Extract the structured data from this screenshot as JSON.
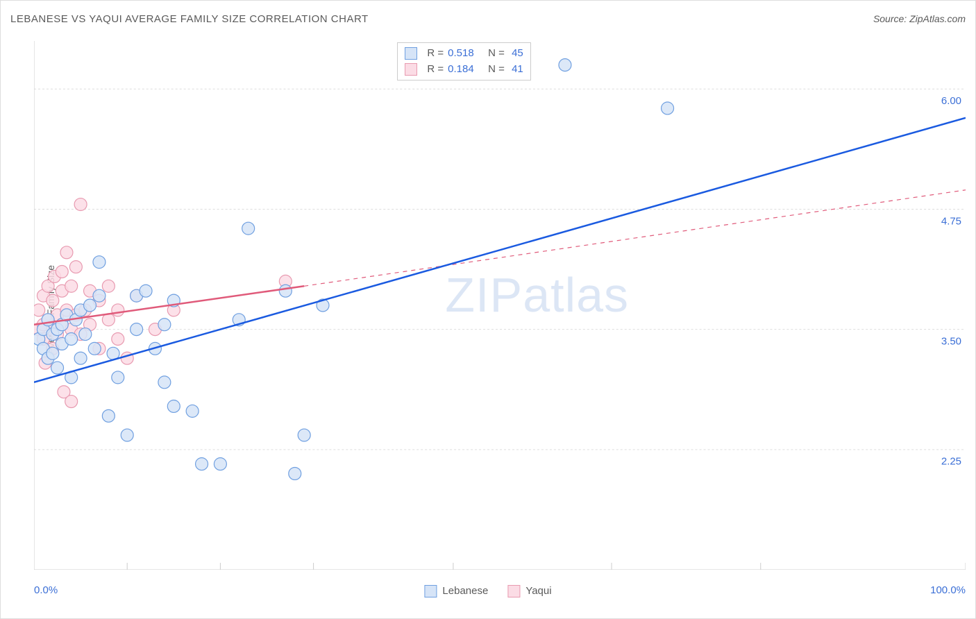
{
  "title": "LEBANESE VS YAQUI AVERAGE FAMILY SIZE CORRELATION CHART",
  "source": "Source: ZipAtlas.com",
  "y_axis_label": "Average Family Size",
  "watermark": {
    "zip": "ZIP",
    "atlas": "atlas"
  },
  "chart": {
    "type": "scatter",
    "xlim": [
      0,
      100
    ],
    "ylim": [
      1.0,
      6.5
    ],
    "x_min_label": "0.0%",
    "x_max_label": "100.0%",
    "y_ticks": [
      2.25,
      3.5,
      4.75,
      6.0
    ],
    "y_tick_labels": [
      "2.25",
      "3.50",
      "4.75",
      "6.00"
    ],
    "x_ticks": [
      0,
      10,
      20,
      30,
      45,
      62,
      78,
      100
    ],
    "grid_color": "#dddddd",
    "grid_dash": "3,3",
    "axis_color": "#cccccc",
    "background_color": "#ffffff",
    "marker_radius": 9,
    "marker_stroke_width": 1.2,
    "series": [
      {
        "name": "Lebanese",
        "fill": "#d6e4f7",
        "stroke": "#6f9fe0",
        "line_color": "#1a5ae0",
        "line_width": 2.5,
        "line_dash_ext": "6,6",
        "R": "0.518",
        "N": "45",
        "trend": {
          "x1": 0,
          "y1": 2.95,
          "x2": 100,
          "y2": 5.7
        },
        "points": [
          [
            0.5,
            3.4
          ],
          [
            1,
            3.5
          ],
          [
            1,
            3.3
          ],
          [
            1.5,
            3.6
          ],
          [
            1.5,
            3.2
          ],
          [
            2,
            3.45
          ],
          [
            2,
            3.25
          ],
          [
            2.5,
            3.5
          ],
          [
            2.5,
            3.1
          ],
          [
            3,
            3.35
          ],
          [
            3,
            3.55
          ],
          [
            3.5,
            3.65
          ],
          [
            4,
            3.4
          ],
          [
            4,
            3.0
          ],
          [
            4.5,
            3.6
          ],
          [
            5,
            3.2
          ],
          [
            5,
            3.7
          ],
          [
            5.5,
            3.45
          ],
          [
            6,
            3.75
          ],
          [
            6.5,
            3.3
          ],
          [
            7,
            3.85
          ],
          [
            7,
            4.2
          ],
          [
            8,
            2.6
          ],
          [
            8.5,
            3.25
          ],
          [
            9,
            3.0
          ],
          [
            10,
            2.4
          ],
          [
            11,
            3.5
          ],
          [
            11,
            3.85
          ],
          [
            12,
            3.9
          ],
          [
            13,
            3.3
          ],
          [
            14,
            2.95
          ],
          [
            14,
            3.55
          ],
          [
            15,
            2.7
          ],
          [
            15,
            3.8
          ],
          [
            17,
            2.65
          ],
          [
            18,
            2.1
          ],
          [
            20,
            2.1
          ],
          [
            22,
            3.6
          ],
          [
            23,
            4.55
          ],
          [
            27,
            3.9
          ],
          [
            28,
            2.0
          ],
          [
            29,
            2.4
          ],
          [
            31,
            3.75
          ],
          [
            57,
            6.25
          ],
          [
            68,
            5.8
          ]
        ]
      },
      {
        "name": "Yaqui",
        "fill": "#fbdce5",
        "stroke": "#e89ab0",
        "line_color": "#e05a7a",
        "line_width": 2.5,
        "line_dash_ext": "6,6",
        "R": "0.184",
        "N": "41",
        "trend_solid": {
          "x1": 0,
          "y1": 3.55,
          "x2": 29,
          "y2": 3.95
        },
        "trend_dash": {
          "x1": 29,
          "y1": 3.95,
          "x2": 100,
          "y2": 4.95
        },
        "points": [
          [
            0.5,
            3.5
          ],
          [
            0.5,
            3.7
          ],
          [
            1,
            3.55
          ],
          [
            1,
            3.4
          ],
          [
            1,
            3.85
          ],
          [
            1.2,
            3.15
          ],
          [
            1.5,
            3.6
          ],
          [
            1.5,
            3.95
          ],
          [
            2,
            3.5
          ],
          [
            2,
            3.8
          ],
          [
            2,
            3.3
          ],
          [
            2.2,
            4.05
          ],
          [
            2.5,
            3.65
          ],
          [
            2.5,
            3.45
          ],
          [
            3,
            3.9
          ],
          [
            3,
            3.55
          ],
          [
            3,
            4.1
          ],
          [
            3.2,
            2.85
          ],
          [
            3.5,
            3.7
          ],
          [
            3.5,
            4.3
          ],
          [
            4,
            3.5
          ],
          [
            4,
            3.95
          ],
          [
            4,
            2.75
          ],
          [
            4.5,
            3.65
          ],
          [
            4.5,
            4.15
          ],
          [
            5,
            3.45
          ],
          [
            5,
            4.8
          ],
          [
            5.5,
            3.7
          ],
          [
            6,
            3.55
          ],
          [
            6,
            3.9
          ],
          [
            7,
            3.3
          ],
          [
            7,
            3.8
          ],
          [
            8,
            3.95
          ],
          [
            8,
            3.6
          ],
          [
            9,
            3.4
          ],
          [
            9,
            3.7
          ],
          [
            10,
            3.2
          ],
          [
            11,
            3.85
          ],
          [
            13,
            3.5
          ],
          [
            15,
            3.7
          ],
          [
            27,
            4.0
          ]
        ]
      }
    ],
    "top_legend": {
      "labels": {
        "R": "R =",
        "N": "N ="
      }
    },
    "bottom_legend": {
      "items": [
        "Lebanese",
        "Yaqui"
      ]
    }
  }
}
